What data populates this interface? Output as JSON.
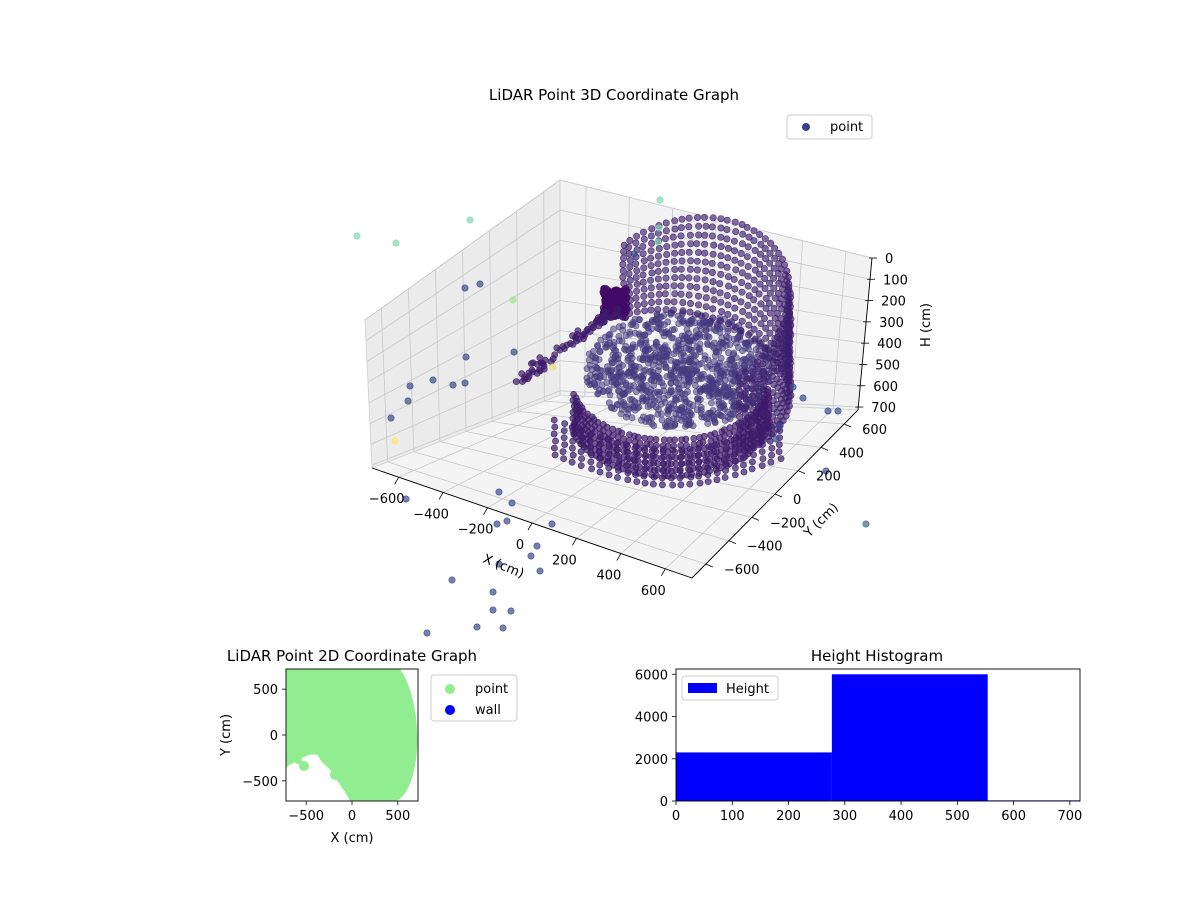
{
  "chart_data": [
    {
      "type": "scatter",
      "projection": "3d",
      "title": "LiDAR Point 3D Coordinate Graph",
      "xlabel": "X (cm)",
      "ylabel": "Y (cm)",
      "zlabel": "H (cm)",
      "x_ticks": [
        -600,
        -400,
        -200,
        0,
        200,
        400,
        600
      ],
      "y_ticks": [
        -600,
        -400,
        -200,
        0,
        200,
        400,
        600
      ],
      "z_ticks": [
        0,
        100,
        200,
        300,
        400,
        500,
        600,
        700
      ],
      "x_tick_labels": [
        "−600",
        "−400",
        "−200",
        "0",
        "200",
        "400",
        "600"
      ],
      "y_tick_labels": [
        "−600",
        "−400",
        "−200",
        "0",
        "200",
        "400",
        "600"
      ],
      "z_tick_labels": [
        "0",
        "100",
        "200",
        "300",
        "400",
        "500",
        "600",
        "700"
      ],
      "zlim": [
        0,
        700
      ],
      "z_inverted": true,
      "grid": true,
      "colormap": "viridis",
      "legend": {
        "entries": [
          "point"
        ],
        "placement": "upper-right",
        "marker_color": "#3b3f8f"
      },
      "description": "Dense cluster of points forming a curved wall arc on the right and a floor disk near center; sparse outliers scattered around."
    },
    {
      "type": "scatter",
      "title": "LiDAR Point 2D Coordinate Graph",
      "xlabel": "X (cm)",
      "ylabel": "Y (cm)",
      "xlim": [
        -720,
        720
      ],
      "ylim": [
        -720,
        720
      ],
      "x_ticks": [
        -500,
        0,
        500
      ],
      "y_ticks": [
        -500,
        0,
        500
      ],
      "x_tick_labels": [
        "−500",
        "0",
        "500"
      ],
      "y_tick_labels": [
        "−500",
        "0",
        "500"
      ],
      "series": [
        {
          "name": "point",
          "color": "#90ee90"
        },
        {
          "name": "wall",
          "color": "#0000ff"
        }
      ],
      "legend": {
        "placement": "outside-right"
      }
    },
    {
      "type": "bar",
      "subtype": "histogram",
      "title": "Height Histogram",
      "xlim": [
        0,
        718
      ],
      "ylim": [
        0,
        6250
      ],
      "x_ticks": [
        0,
        100,
        200,
        300,
        400,
        500,
        600,
        700
      ],
      "y_ticks": [
        0,
        2000,
        4000,
        6000
      ],
      "bins": [
        {
          "start": 0,
          "end": 277,
          "count": 2300
        },
        {
          "start": 277,
          "end": 554,
          "count": 6000
        },
        {
          "start": 554,
          "end": 718,
          "count": 30
        }
      ],
      "series": [
        {
          "name": "Height",
          "color": "#0000ff"
        }
      ],
      "legend": {
        "placement": "upper-left"
      }
    }
  ]
}
